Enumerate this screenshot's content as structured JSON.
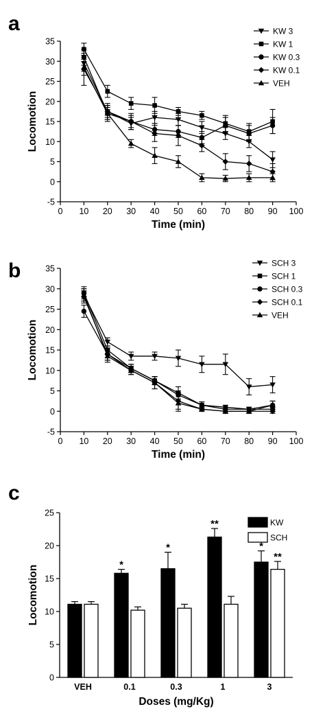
{
  "chart_data": [
    {
      "panel": "a",
      "type": "line",
      "xlabel": "Time (min)",
      "ylabel": "Locomotion",
      "xlim": [
        0,
        100
      ],
      "ylim": [
        -5,
        35
      ],
      "xticks": [
        0,
        10,
        20,
        30,
        40,
        50,
        60,
        70,
        80,
        90,
        100
      ],
      "yticks": [
        -5,
        0,
        5,
        10,
        15,
        20,
        25,
        30,
        35
      ],
      "legend_position": "top-right",
      "x": [
        10,
        20,
        30,
        40,
        50,
        60,
        70,
        80,
        90
      ],
      "series": [
        {
          "name": "KW 3",
          "marker": "triangle-down",
          "values": [
            29.5,
            17.5,
            14.5,
            16.0,
            15.5,
            13.5,
            12.0,
            10.0,
            5.5
          ],
          "errors": [
            2.0,
            1.5,
            1.5,
            1.5,
            1.5,
            1.5,
            1.5,
            1.5,
            2.0
          ]
        },
        {
          "name": "KW 1",
          "marker": "square",
          "values": [
            33.0,
            22.5,
            19.5,
            19.0,
            17.5,
            16.5,
            14.5,
            12.5,
            15.0
          ],
          "errors": [
            1.5,
            1.5,
            1.5,
            2.0,
            1.0,
            1.0,
            2.0,
            2.0,
            3.0
          ]
        },
        {
          "name": "KW 0.3",
          "marker": "circle",
          "values": [
            31.0,
            17.0,
            15.0,
            13.0,
            12.5,
            11.0,
            14.0,
            12.0,
            14.0
          ],
          "errors": [
            2.0,
            1.5,
            1.5,
            1.5,
            1.5,
            1.5,
            2.0,
            2.0,
            2.0
          ]
        },
        {
          "name": "KW 0.1",
          "marker": "diamond",
          "values": [
            28.0,
            17.5,
            15.0,
            12.0,
            11.5,
            9.0,
            5.0,
            4.5,
            2.5
          ],
          "errors": [
            4.0,
            2.0,
            2.0,
            2.0,
            2.5,
            1.5,
            2.0,
            2.0,
            2.0
          ]
        },
        {
          "name": "VEH",
          "marker": "triangle-up",
          "values": [
            28.5,
            17.0,
            9.5,
            6.5,
            5.0,
            1.0,
            0.8,
            1.0,
            1.0
          ],
          "errors": [
            2.0,
            2.0,
            1.0,
            2.0,
            1.5,
            1.0,
            0.8,
            1.0,
            1.0
          ]
        }
      ]
    },
    {
      "panel": "b",
      "type": "line",
      "xlabel": "Time (min)",
      "ylabel": "Locomotion",
      "xlim": [
        0,
        100
      ],
      "ylim": [
        -5,
        35
      ],
      "xticks": [
        0,
        10,
        20,
        30,
        40,
        50,
        60,
        70,
        80,
        90,
        100
      ],
      "yticks": [
        -5,
        0,
        5,
        10,
        15,
        20,
        25,
        30,
        35
      ],
      "legend_position": "top-right",
      "x": [
        10,
        20,
        30,
        40,
        50,
        60,
        70,
        80,
        90
      ],
      "series": [
        {
          "name": "SCH 3",
          "marker": "triangle-down",
          "values": [
            28.5,
            17.0,
            13.5,
            13.5,
            13.0,
            11.5,
            11.5,
            6.0,
            6.5
          ],
          "errors": [
            1.5,
            1.0,
            1.0,
            1.0,
            2.0,
            2.0,
            2.5,
            2.0,
            2.0
          ]
        },
        {
          "name": "SCH 1",
          "marker": "square",
          "values": [
            29.0,
            15.0,
            10.5,
            7.5,
            4.0,
            1.5,
            1.0,
            0.5,
            0.5
          ],
          "errors": [
            1.5,
            1.0,
            1.0,
            1.0,
            1.0,
            0.8,
            0.5,
            0.5,
            0.5
          ]
        },
        {
          "name": "SCH 0.3",
          "marker": "circle",
          "values": [
            24.5,
            14.0,
            10.5,
            7.5,
            4.5,
            1.5,
            0.5,
            0.5,
            1.5
          ],
          "errors": [
            1.5,
            1.5,
            1.0,
            1.0,
            1.5,
            0.8,
            0.5,
            0.5,
            1.0
          ]
        },
        {
          "name": "SCH 0.1",
          "marker": "diamond",
          "values": [
            28.0,
            14.0,
            10.0,
            7.0,
            2.5,
            0.5,
            0.0,
            0.0,
            0.0
          ],
          "errors": [
            1.5,
            1.5,
            1.0,
            1.5,
            2.0,
            0.5,
            0.5,
            0.5,
            0.5
          ]
        },
        {
          "name": "VEH",
          "marker": "triangle-up",
          "values": [
            28.5,
            13.5,
            10.0,
            7.0,
            2.0,
            0.5,
            0.0,
            0.0,
            1.5
          ],
          "errors": [
            1.5,
            1.5,
            1.0,
            1.5,
            2.0,
            0.5,
            0.5,
            0.5,
            1.0
          ]
        }
      ]
    },
    {
      "panel": "c",
      "type": "bar",
      "xlabel": "Doses (mg/Kg)",
      "ylabel": "Locomotion",
      "ylim": [
        0,
        25
      ],
      "yticks": [
        0,
        5,
        10,
        15,
        20,
        25
      ],
      "legend_position": "top-right",
      "categories": [
        "VEH",
        "0.1",
        "0.3",
        "1",
        "3"
      ],
      "series": [
        {
          "name": "KW",
          "fill": "#000000",
          "values": [
            11.1,
            15.8,
            16.5,
            21.3,
            17.5
          ],
          "errors": [
            0.4,
            0.6,
            2.5,
            1.3,
            1.7
          ],
          "significance": [
            "",
            "*",
            "*",
            "**",
            "*"
          ]
        },
        {
          "name": "SCH",
          "fill": "#ffffff",
          "values": [
            11.1,
            10.2,
            10.5,
            11.1,
            16.4
          ],
          "errors": [
            0.4,
            0.5,
            0.6,
            1.2,
            1.2
          ],
          "significance": [
            "",
            "",
            "",
            "",
            "**"
          ]
        }
      ]
    }
  ]
}
